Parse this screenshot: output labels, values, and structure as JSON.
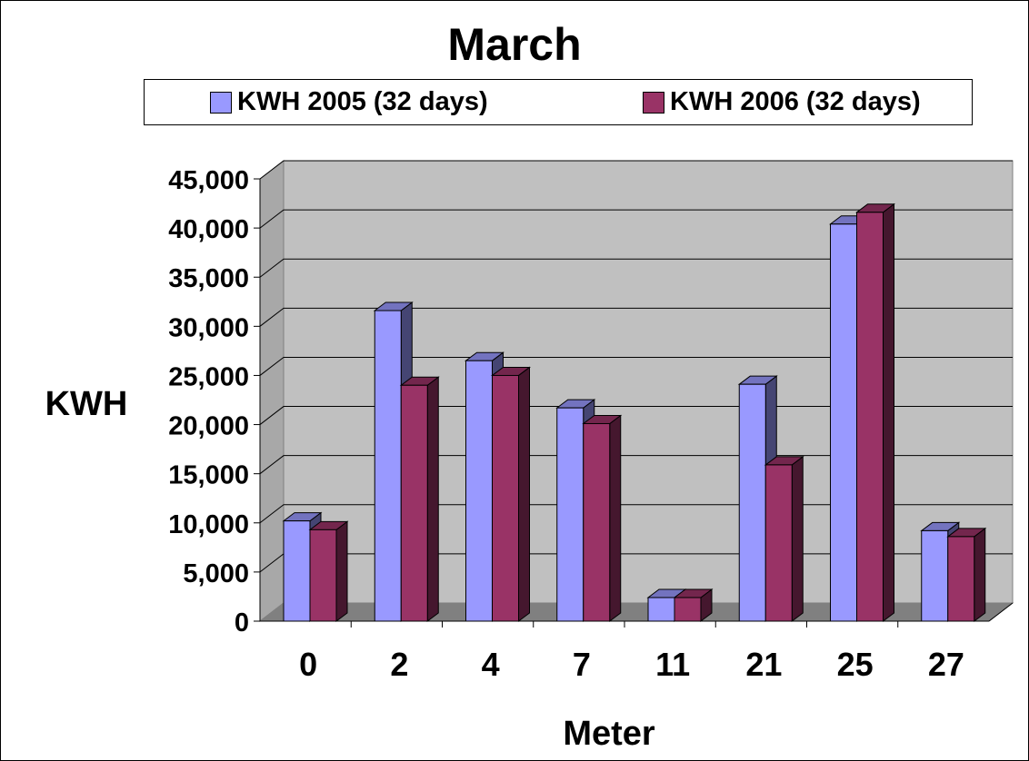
{
  "chart_data": {
    "type": "bar",
    "title": "March",
    "xlabel": "Meter",
    "ylabel": "KWH",
    "categories": [
      "0",
      "2",
      "4",
      "7",
      "11",
      "21",
      "25",
      "27"
    ],
    "series": [
      {
        "name": "KWH 2005 (32 days)",
        "color": "#9999ff",
        "values": [
          10200,
          31600,
          26500,
          21700,
          2400,
          24100,
          40400,
          9200
        ]
      },
      {
        "name": "KWH 2006 (32 days)",
        "color": "#993366",
        "values": [
          9300,
          24000,
          25000,
          20100,
          2400,
          15900,
          41600,
          8600
        ]
      }
    ],
    "ylim": [
      0,
      45000
    ],
    "yticks": [
      "0",
      "5,000",
      "10,000",
      "15,000",
      "20,000",
      "25,000",
      "30,000",
      "35,000",
      "40,000",
      "45,000"
    ],
    "grid": true,
    "legend_position": "top",
    "style": "3d-clustered-column"
  }
}
